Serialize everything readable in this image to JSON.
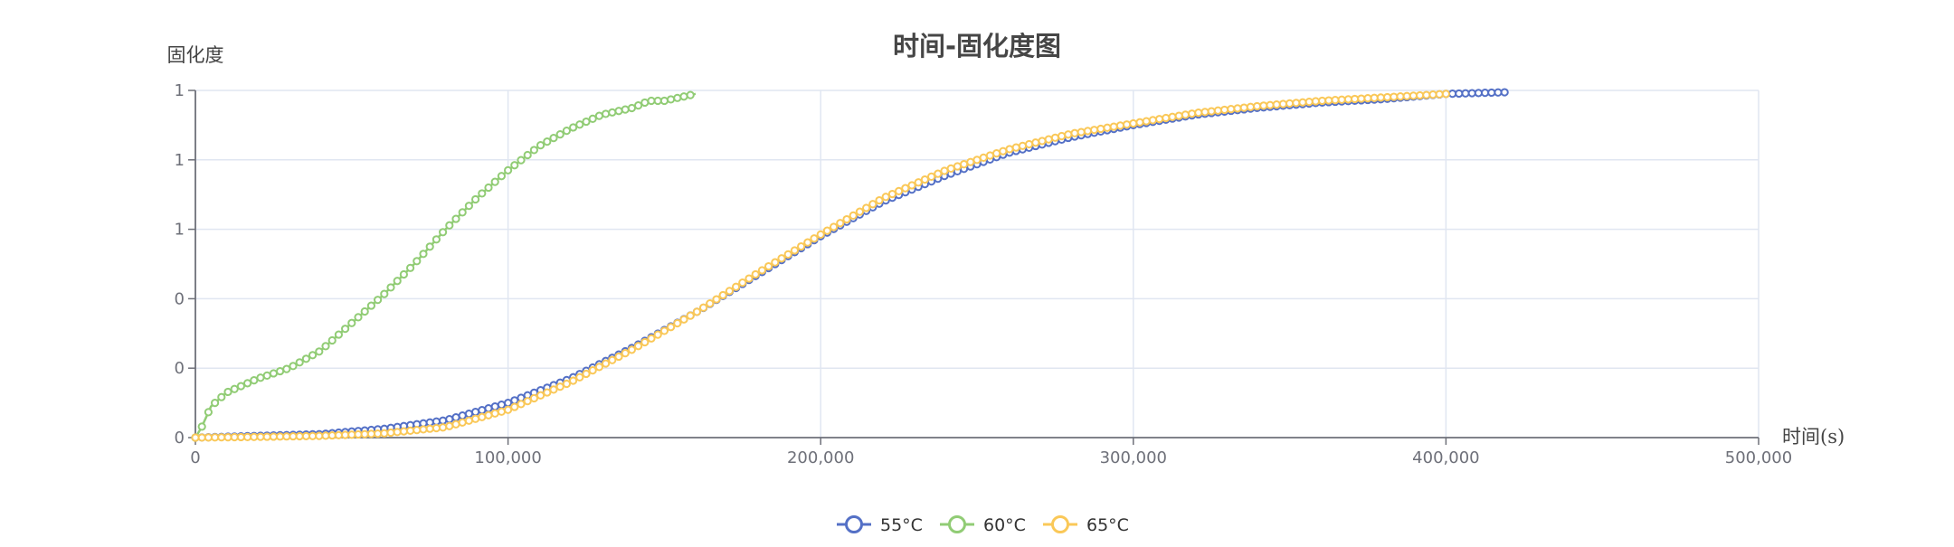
{
  "chart_data": {
    "type": "line",
    "title": "时间-固化度图",
    "xlabel": "时间(s)",
    "ylabel": "固化度",
    "xlim": [
      0,
      500000
    ],
    "ylim": [
      0,
      1
    ],
    "x_ticks": [
      0,
      100000,
      200000,
      300000,
      400000,
      500000
    ],
    "x_tick_labels": [
      "0",
      "100,000",
      "200,000",
      "300,000",
      "400,000",
      "500,000"
    ],
    "y_ticks": [
      0,
      0.2,
      0.4,
      0.6,
      0.8,
      1.0
    ],
    "y_tick_labels": [
      "0",
      "0",
      "0",
      "1",
      "1",
      "1"
    ],
    "grid": true,
    "legend_position": "bottom-center",
    "series": [
      {
        "name": "55°C",
        "color": "#5470c6",
        "x": [
          0,
          20000,
          40000,
          60000,
          80000,
          100000,
          120000,
          140000,
          160000,
          180000,
          200000,
          220000,
          240000,
          260000,
          280000,
          300000,
          320000,
          340000,
          360000,
          380000,
          400000,
          420000
        ],
        "y": [
          0.0,
          0.005,
          0.01,
          0.025,
          0.05,
          0.1,
          0.17,
          0.26,
          0.36,
          0.47,
          0.58,
          0.68,
          0.755,
          0.82,
          0.865,
          0.9,
          0.93,
          0.95,
          0.965,
          0.975,
          0.99,
          0.995
        ]
      },
      {
        "name": "60°C",
        "color": "#91cc75",
        "x": [
          0,
          2000,
          5000,
          10000,
          20000,
          30000,
          40000,
          50000,
          60000,
          70000,
          80000,
          90000,
          100000,
          110000,
          120000,
          130000,
          140000,
          145000,
          150000,
          160000
        ],
        "y": [
          0.0,
          0.03,
          0.09,
          0.13,
          0.17,
          0.2,
          0.25,
          0.33,
          0.41,
          0.5,
          0.6,
          0.69,
          0.77,
          0.84,
          0.89,
          0.93,
          0.95,
          0.97,
          0.97,
          0.99
        ]
      },
      {
        "name": "65°C",
        "color": "#fac858",
        "x": [
          0,
          20000,
          40000,
          60000,
          80000,
          100000,
          120000,
          140000,
          160000,
          180000,
          200000,
          220000,
          240000,
          260000,
          280000,
          300000,
          320000,
          340000,
          360000,
          380000,
          400000
        ],
        "y": [
          0.0,
          0.002,
          0.005,
          0.012,
          0.03,
          0.08,
          0.16,
          0.255,
          0.36,
          0.475,
          0.585,
          0.69,
          0.77,
          0.83,
          0.875,
          0.905,
          0.935,
          0.955,
          0.97,
          0.98,
          0.99
        ]
      }
    ]
  }
}
